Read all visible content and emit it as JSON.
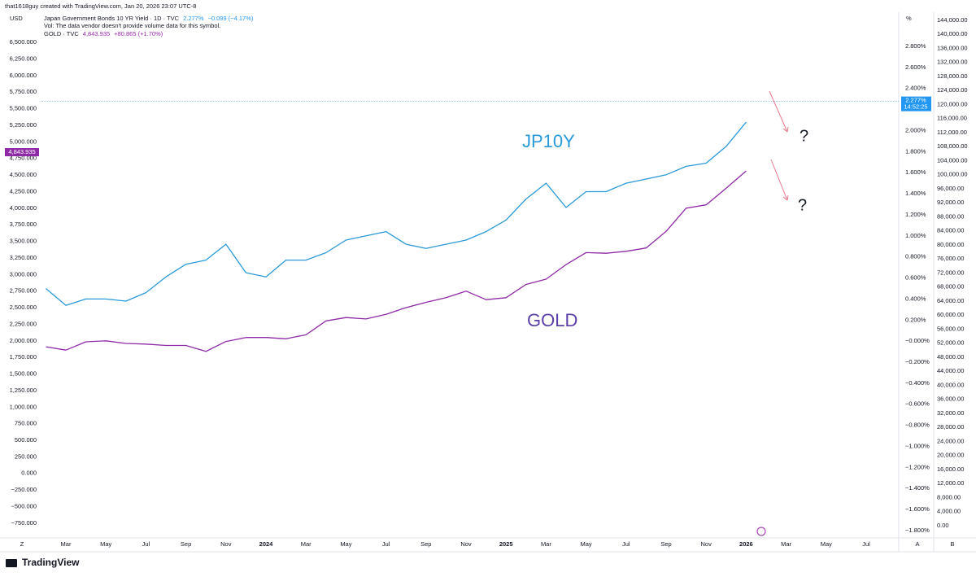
{
  "header": {
    "attribution": "that1618guy created with TradingView.com, Jan 20, 2026 23:07 UTC-8"
  },
  "footer": {
    "logo": "TradingView"
  },
  "corner_labels": {
    "left": "Z",
    "auto": "A",
    "log": "B"
  },
  "chart_data": {
    "type": "line",
    "y_unit": "USD",
    "y2_unit": "%",
    "note": "Vol: The data vendor doesn't provide volume data for this symbol.",
    "categories": [
      null,
      "Mar",
      null,
      "May",
      null,
      "Jul",
      null,
      "Sep",
      null,
      "Nov",
      null,
      "2024",
      null,
      "Mar",
      null,
      "May",
      null,
      "Jul",
      null,
      "Sep",
      null,
      "Nov",
      null,
      "2025",
      null,
      "Mar",
      null,
      "May",
      null,
      "Jul",
      null,
      "Sep",
      null,
      "Nov",
      null,
      "2026",
      null,
      "Mar",
      null,
      "May",
      null,
      "Jul"
    ],
    "series": [
      {
        "name": "Japan Government Bonds 10 YR Yield · 1D · TVC",
        "color": "#2a9ad8",
        "axis": "y2",
        "values": [
          0.5,
          0.34,
          0.4,
          0.4,
          0.38,
          0.46,
          0.61,
          0.73,
          0.77,
          0.92,
          0.65,
          0.61,
          0.77,
          0.77,
          0.84,
          0.96,
          1.0,
          1.04,
          0.92,
          0.88,
          0.92,
          0.96,
          1.04,
          1.15,
          1.35,
          1.5,
          1.27,
          1.42,
          1.42,
          1.5,
          1.54,
          1.58,
          1.66,
          1.69,
          1.85,
          2.08,
          null,
          null,
          null,
          null,
          null,
          null
        ],
        "last": {
          "value": 2.277,
          "label": "2.277%"
        },
        "change": "−0.099 (−4.17%)",
        "timer": "14:52:25"
      },
      {
        "name": "GOLD · TVC",
        "color": "#8e2aa6",
        "values": [
          1910,
          1860,
          1985,
          2000,
          1960,
          1950,
          1930,
          1930,
          1840,
          1990,
          2050,
          2050,
          2030,
          2090,
          2300,
          2350,
          2330,
          2400,
          2500,
          2580,
          2650,
          2750,
          2620,
          2650,
          2850,
          2930,
          3150,
          3330,
          3320,
          3350,
          3400,
          3650,
          4000,
          4050,
          4300,
          4560,
          null,
          null,
          null,
          null,
          null,
          null
        ],
        "last": {
          "value": 4843.935,
          "label": "4,843.935"
        },
        "change": "+80.865 (+1.70%)"
      }
    ],
    "annotations": [
      {
        "text": "JP10Y"
      },
      {
        "text": "GOLD"
      },
      {
        "text": "?"
      },
      {
        "text": "?"
      }
    ],
    "ylim": [
      -960,
      6930
    ],
    "yticks": [
      {
        "value": 6500,
        "label": "6,500.000"
      },
      {
        "value": 6250,
        "label": "6,250.000"
      },
      {
        "value": 6000,
        "label": "6,000.000"
      },
      {
        "value": 5750,
        "label": "5,750.000"
      },
      {
        "value": 5500,
        "label": "5,500.000"
      },
      {
        "value": 5250,
        "label": "5,250.000"
      },
      {
        "value": 5000,
        "label": "5,000.000"
      },
      {
        "value": 4750,
        "label": "4,750.000"
      },
      {
        "value": 4500,
        "label": "4,500.000"
      },
      {
        "value": 4250,
        "label": "4,250.000"
      },
      {
        "value": 4000,
        "label": "4,000.000"
      },
      {
        "value": 3750,
        "label": "3,750.000"
      },
      {
        "value": 3500,
        "label": "3,500.000"
      },
      {
        "value": 3250,
        "label": "3,250.000"
      },
      {
        "value": 3000,
        "label": "3,000.000"
      },
      {
        "value": 2750,
        "label": "2,750.000"
      },
      {
        "value": 2500,
        "label": "2,500.000"
      },
      {
        "value": 2250,
        "label": "2,250.000"
      },
      {
        "value": 2000,
        "label": "2,000.000"
      },
      {
        "value": 1750,
        "label": "1,750.000"
      },
      {
        "value": 1500,
        "label": "1,500.000"
      },
      {
        "value": 1250,
        "label": "1,250.000"
      },
      {
        "value": 1000,
        "label": "1,000.000"
      },
      {
        "value": 750,
        "label": "750.000"
      },
      {
        "value": 500,
        "label": "500.000"
      },
      {
        "value": 250,
        "label": "250.000"
      },
      {
        "value": 0,
        "label": "0.000"
      },
      {
        "value": -250,
        "label": "−250.000"
      },
      {
        "value": -500,
        "label": "−500.000"
      },
      {
        "value": -750,
        "label": "−750.000"
      }
    ],
    "y2lim": [
      -1.862,
      3.109
    ],
    "y2ticks": [
      {
        "value": 2.8,
        "label": "2.800%"
      },
      {
        "value": 2.6,
        "label": "2.600%"
      },
      {
        "value": 2.4,
        "label": "2.400%"
      },
      {
        "value": 2.0,
        "label": "2.000%"
      },
      {
        "value": 1.8,
        "label": "1.800%"
      },
      {
        "value": 1.6,
        "label": "1.600%"
      },
      {
        "value": 1.4,
        "label": "1.400%"
      },
      {
        "value": 1.2,
        "label": "1.200%"
      },
      {
        "value": 1.0,
        "label": "1.000%"
      },
      {
        "value": 0.8,
        "label": "0.800%"
      },
      {
        "value": 0.6,
        "label": "0.600%"
      },
      {
        "value": 0.4,
        "label": "0.400%"
      },
      {
        "value": 0.2,
        "label": "0.200%"
      },
      {
        "value": 0,
        "label": "−0.000%"
      },
      {
        "value": -0.2,
        "label": "−0.200%"
      },
      {
        "value": -0.4,
        "label": "−0.400%"
      },
      {
        "value": -0.6,
        "label": "−0.600%"
      },
      {
        "value": -0.8,
        "label": "−0.800%"
      },
      {
        "value": -1.0,
        "label": "−1.000%"
      },
      {
        "value": -1.2,
        "label": "−1.200%"
      },
      {
        "value": -1.4,
        "label": "−1.400%"
      },
      {
        "value": -1.6,
        "label": "−1.600%"
      },
      {
        "value": -1.8,
        "label": "−1.800%"
      }
    ],
    "y3lim": [
      -3246,
      145855
    ],
    "y3ticks": [
      {
        "value": 144000,
        "label": "144,000.00"
      },
      {
        "value": 140000,
        "label": "140,000.00"
      },
      {
        "value": 136000,
        "label": "136,000.00"
      },
      {
        "value": 132000,
        "label": "132,000.00"
      },
      {
        "value": 128000,
        "label": "128,000.00"
      },
      {
        "value": 124000,
        "label": "124,000.00"
      },
      {
        "value": 120000,
        "label": "120,000.00"
      },
      {
        "value": 116000,
        "label": "116,000.00"
      },
      {
        "value": 112000,
        "label": "112,000.00"
      },
      {
        "value": 108000,
        "label": "108,000.00"
      },
      {
        "value": 104000,
        "label": "104,000.00"
      },
      {
        "value": 100000,
        "label": "100,000.00"
      },
      {
        "value": 96000,
        "label": "96,000.00"
      },
      {
        "value": 92000,
        "label": "92,000.00"
      },
      {
        "value": 88000,
        "label": "88,000.00"
      },
      {
        "value": 84000,
        "label": "84,000.00"
      },
      {
        "value": 80000,
        "label": "80,000.00"
      },
      {
        "value": 76000,
        "label": "76,000.00"
      },
      {
        "value": 72000,
        "label": "72,000.00"
      },
      {
        "value": 68000,
        "label": "68,000.00"
      },
      {
        "value": 64000,
        "label": "64,000.00"
      },
      {
        "value": 60000,
        "label": "60,000.00"
      },
      {
        "value": 56000,
        "label": "56,000.00"
      },
      {
        "value": 52000,
        "label": "52,000.00"
      },
      {
        "value": 48000,
        "label": "48,000.00"
      },
      {
        "value": 44000,
        "label": "44,000.00"
      },
      {
        "value": 40000,
        "label": "40,000.00"
      },
      {
        "value": 36000,
        "label": "36,000.00"
      },
      {
        "value": 32000,
        "label": "32,000.00"
      },
      {
        "value": 28000,
        "label": "28,000.00"
      },
      {
        "value": 24000,
        "label": "24,000.00"
      },
      {
        "value": 20000,
        "label": "20,000.00"
      },
      {
        "value": 16000,
        "label": "16,000.00"
      },
      {
        "value": 12000,
        "label": "12,000.00"
      },
      {
        "value": 8000,
        "label": "8,000.00"
      },
      {
        "value": 4000,
        "label": "4,000.00"
      },
      {
        "value": 0,
        "label": "0.00"
      }
    ],
    "grid": false
  }
}
